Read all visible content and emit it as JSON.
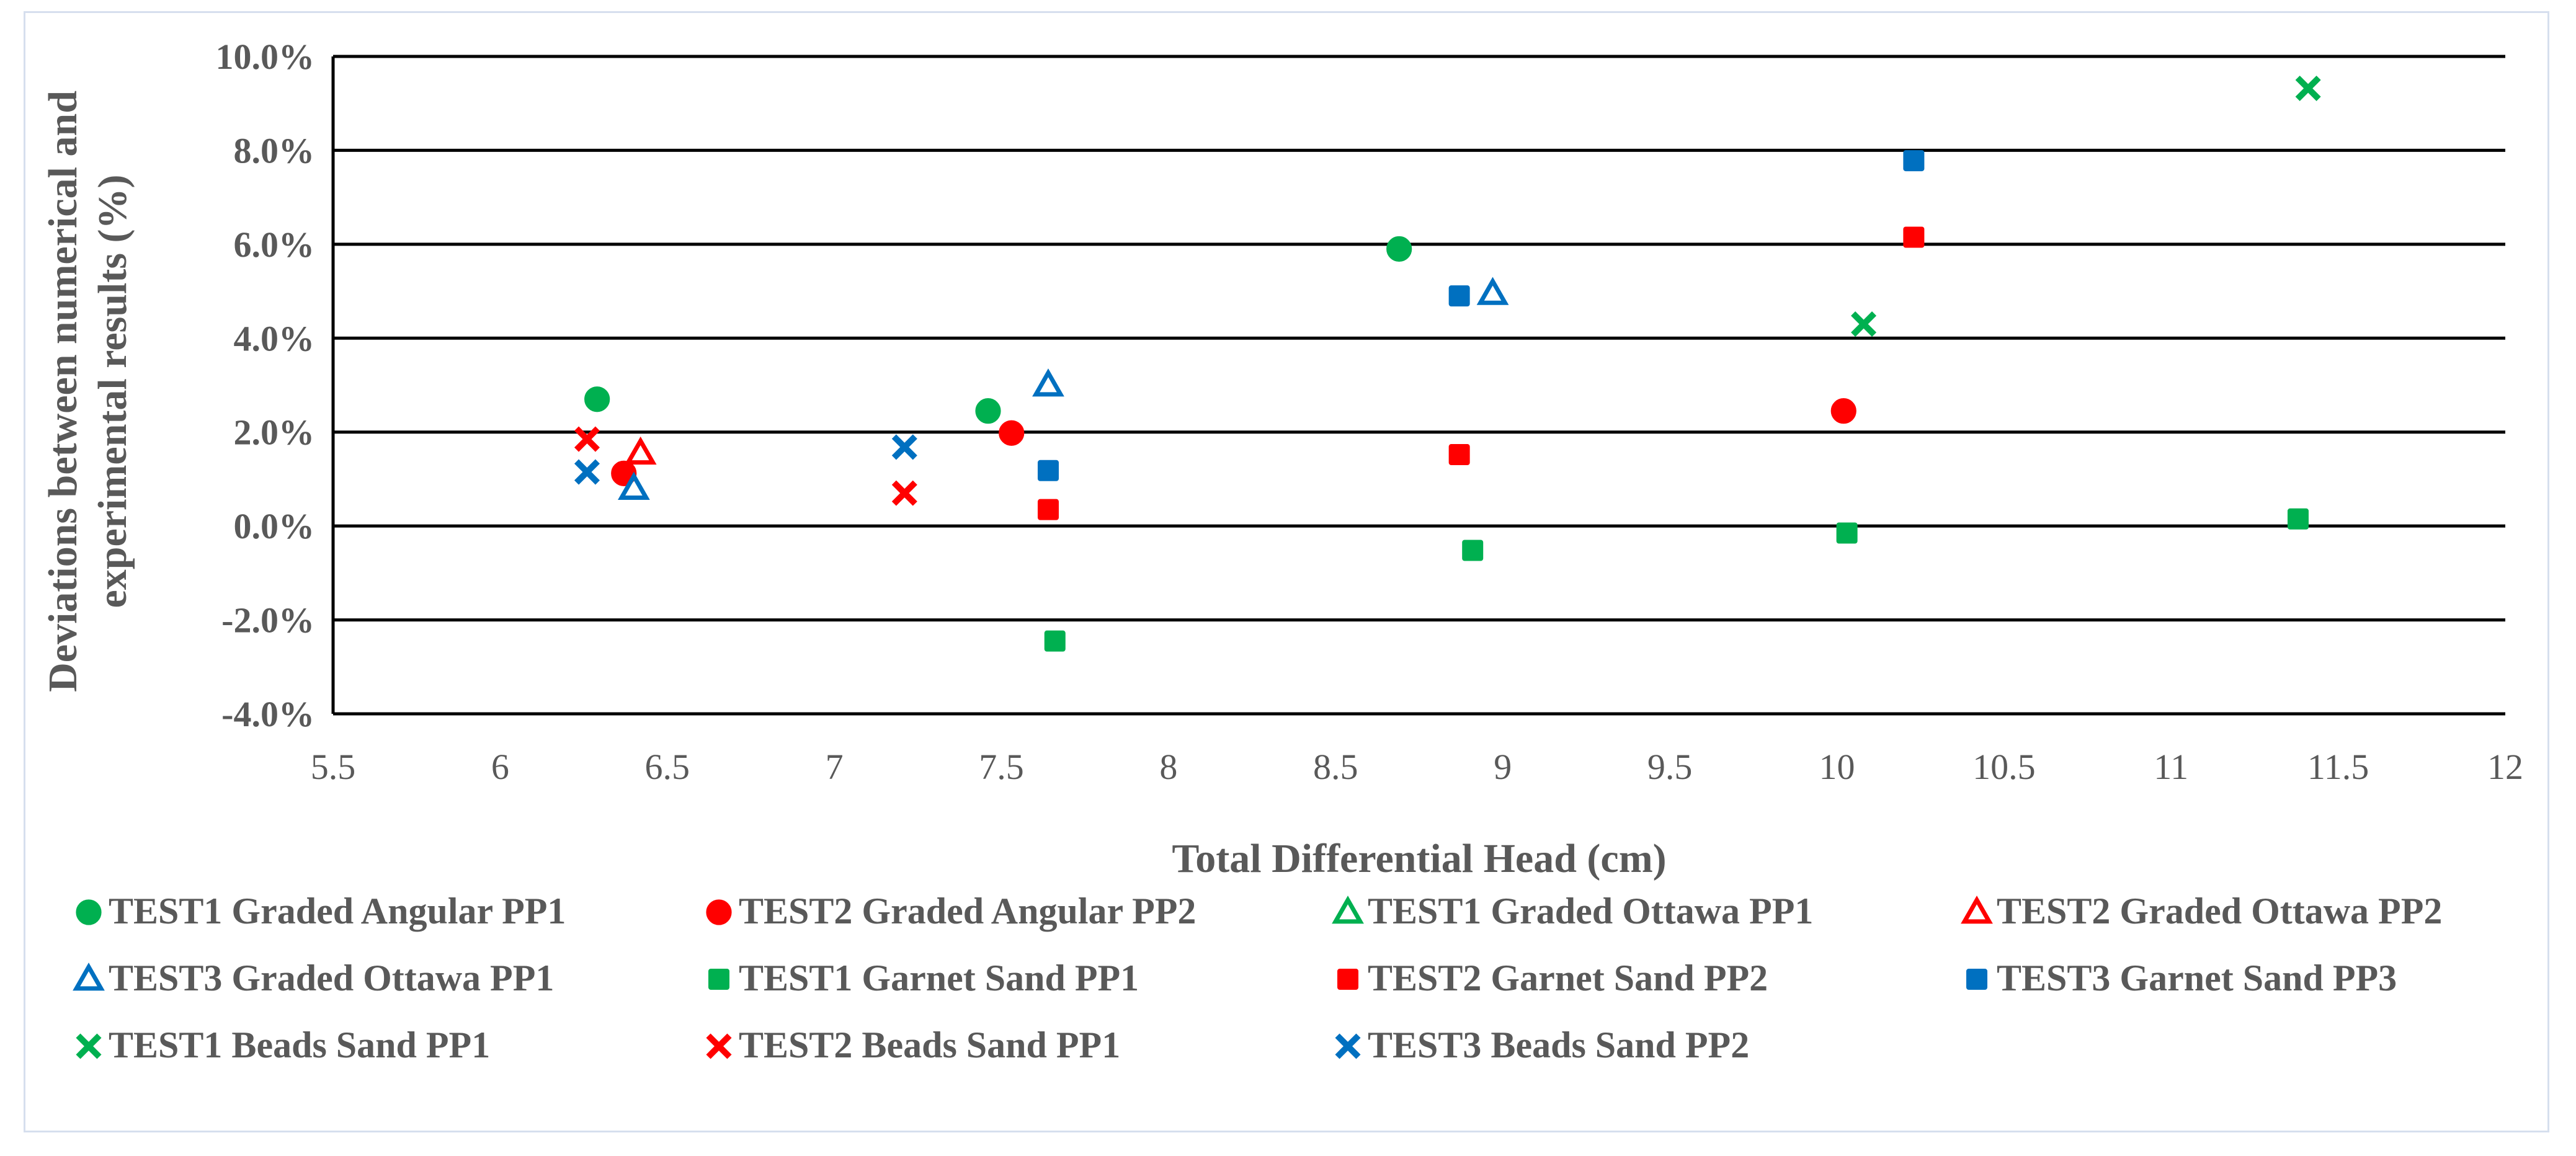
{
  "chart_data": {
    "type": "scatter",
    "title": "",
    "xlabel": "Total Differential Head (cm)",
    "ylabel_lines": [
      "Deviations between numerical and",
      "experimental results (%)"
    ],
    "xlim": [
      5.5,
      12
    ],
    "ylim": [
      -4,
      10
    ],
    "x_ticks": [
      5.5,
      6,
      6.5,
      7,
      7.5,
      8,
      8.5,
      9,
      9.5,
      10,
      10.5,
      11,
      11.5,
      12
    ],
    "x_tick_labels": [
      "5.5",
      "6",
      "6.5",
      "7",
      "7.5",
      "8",
      "8.5",
      "9",
      "9.5",
      "10",
      "10.5",
      "11",
      "11.5",
      "12"
    ],
    "y_ticks": [
      -4,
      -2,
      0,
      2,
      4,
      6,
      8,
      10
    ],
    "y_tick_labels": [
      "-4.0%",
      "-2.0%",
      "0.0%",
      "2.0%",
      "4.0%",
      "6.0%",
      "8.0%",
      "10.0%"
    ],
    "grid": "horizontal",
    "legend_position": "bottom",
    "series": [
      {
        "name": "TEST1 Graded Angular PP1",
        "marker": "circle",
        "filled": true,
        "color": "#00b050",
        "points": [
          [
            6.29,
            2.7
          ],
          [
            7.46,
            2.45
          ],
          [
            8.69,
            5.9
          ]
        ]
      },
      {
        "name": "TEST2 Graded Angular PP2",
        "marker": "circle",
        "filled": true,
        "color": "#ff0000",
        "points": [
          [
            6.37,
            1.12
          ],
          [
            7.53,
            1.98
          ],
          [
            10.02,
            2.45
          ]
        ]
      },
      {
        "name": "TEST1 Graded Ottawa PP1",
        "marker": "triangle",
        "filled": false,
        "color": "#00b050",
        "points": []
      },
      {
        "name": "TEST2 Graded Ottawa PP2",
        "marker": "triangle",
        "filled": false,
        "color": "#ff0000",
        "points": [
          [
            6.42,
            1.55
          ]
        ]
      },
      {
        "name": "TEST3 Graded Ottawa PP1",
        "marker": "triangle",
        "filled": false,
        "color": "#0070c0",
        "points": [
          [
            6.4,
            0.8
          ],
          [
            7.64,
            3.0
          ],
          [
            8.97,
            4.95
          ]
        ]
      },
      {
        "name": "TEST1 Garnet Sand PP1",
        "marker": "square",
        "filled": true,
        "color": "#00b050",
        "points": [
          [
            7.66,
            -2.45
          ],
          [
            8.91,
            -0.52
          ],
          [
            10.03,
            -0.15
          ],
          [
            11.38,
            0.15
          ]
        ]
      },
      {
        "name": "TEST2 Garnet Sand PP2",
        "marker": "square",
        "filled": true,
        "color": "#ff0000",
        "points": [
          [
            7.64,
            0.35
          ],
          [
            8.87,
            1.52
          ],
          [
            10.23,
            6.15
          ]
        ]
      },
      {
        "name": "TEST3 Garnet Sand PP3",
        "marker": "square",
        "filled": true,
        "color": "#0070c0",
        "points": [
          [
            7.64,
            1.18
          ],
          [
            8.87,
            4.9
          ],
          [
            10.23,
            7.78
          ]
        ]
      },
      {
        "name": "TEST1 Beads Sand PP1",
        "marker": "x",
        "filled": true,
        "color": "#00b050",
        "points": [
          [
            10.08,
            4.3
          ],
          [
            11.41,
            9.32
          ]
        ]
      },
      {
        "name": "TEST2 Beads Sand PP1",
        "marker": "x",
        "filled": true,
        "color": "#ff0000",
        "points": [
          [
            6.26,
            1.85
          ],
          [
            7.21,
            0.7
          ]
        ]
      },
      {
        "name": "TEST3 Beads Sand PP2",
        "marker": "x",
        "filled": true,
        "color": "#0070c0",
        "points": [
          [
            6.26,
            1.15
          ],
          [
            7.21,
            1.68
          ]
        ]
      }
    ]
  }
}
